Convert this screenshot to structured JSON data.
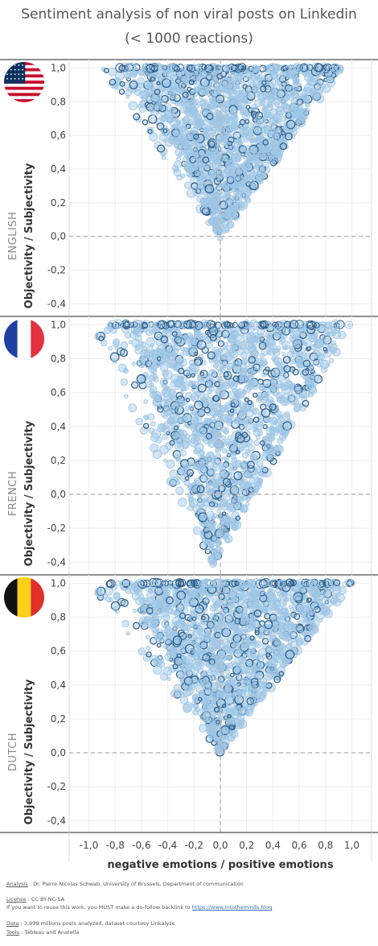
{
  "chart_data": {
    "type": "scatter",
    "title": "Sentiment analysis of non viral posts on Linkedin",
    "subtitle": "(< 1000 reactions)",
    "xlabel": "negative emotions / positive emotions",
    "ylabel": "Objectivity / Subjectivity",
    "x_ticks": [
      "-1,0",
      "-0,8",
      "-0,6",
      "-0,4",
      "-0,2",
      "0,0",
      "0,2",
      "0,4",
      "0,6",
      "0,8",
      "1,0"
    ],
    "xlim": [
      -1.15,
      1.15
    ],
    "ylim": [
      -0.47,
      1.05
    ],
    "y_ticks": [
      "1,0",
      "0,8",
      "0,6",
      "0,4",
      "0,2",
      "0,0",
      "-0,2",
      "-0,4"
    ],
    "grid": true,
    "colors": {
      "fill": "#9ec5e5",
      "stroke_light": "#9ec5e5",
      "stroke_dark": "#2f5d87",
      "ref_line": "#bbbbbb"
    },
    "panels": [
      {
        "name": "ENGLISH",
        "flag": "usa-flag-icon",
        "shape": "inverted-triangle",
        "apex": [
          0.0,
          -0.02
        ],
        "top_left_x": -0.9,
        "top_right_x": 0.92,
        "top_y": 1.0
      },
      {
        "name": "FRENCH",
        "flag": "france-flag-icon",
        "shape": "inverted-triangle",
        "apex": [
          -0.05,
          -0.42
        ],
        "top_left_x": -1.0,
        "top_right_x": 1.0,
        "top_y": 1.0
      },
      {
        "name": "DUTCH",
        "flag": "belgium-flag-icon",
        "shape": "inverted-triangle",
        "apex": [
          0.0,
          0.0
        ],
        "top_left_x": -1.0,
        "top_right_x": 1.0,
        "top_y": 1.0
      }
    ]
  },
  "footer": {
    "analysis_label": "Analysis",
    "analysis_text": " : Dr. Pierre-Nicolas Schwab, University of Brussels, Department of communication",
    "license_label": "License",
    "license_text": " : CC BY-NC-SA",
    "reuse_text": "If you want to reuse this work, you MUST make a do-follow backlink to ",
    "reuse_link": "https://www.intotheminds.blog",
    "data_label": "Data",
    "data_text": " : 3,999 millions posts analyzed, dataset courtesy Linkalyze",
    "tools_label": "Tools",
    "tools_text": " : Tableau and Anatella"
  }
}
